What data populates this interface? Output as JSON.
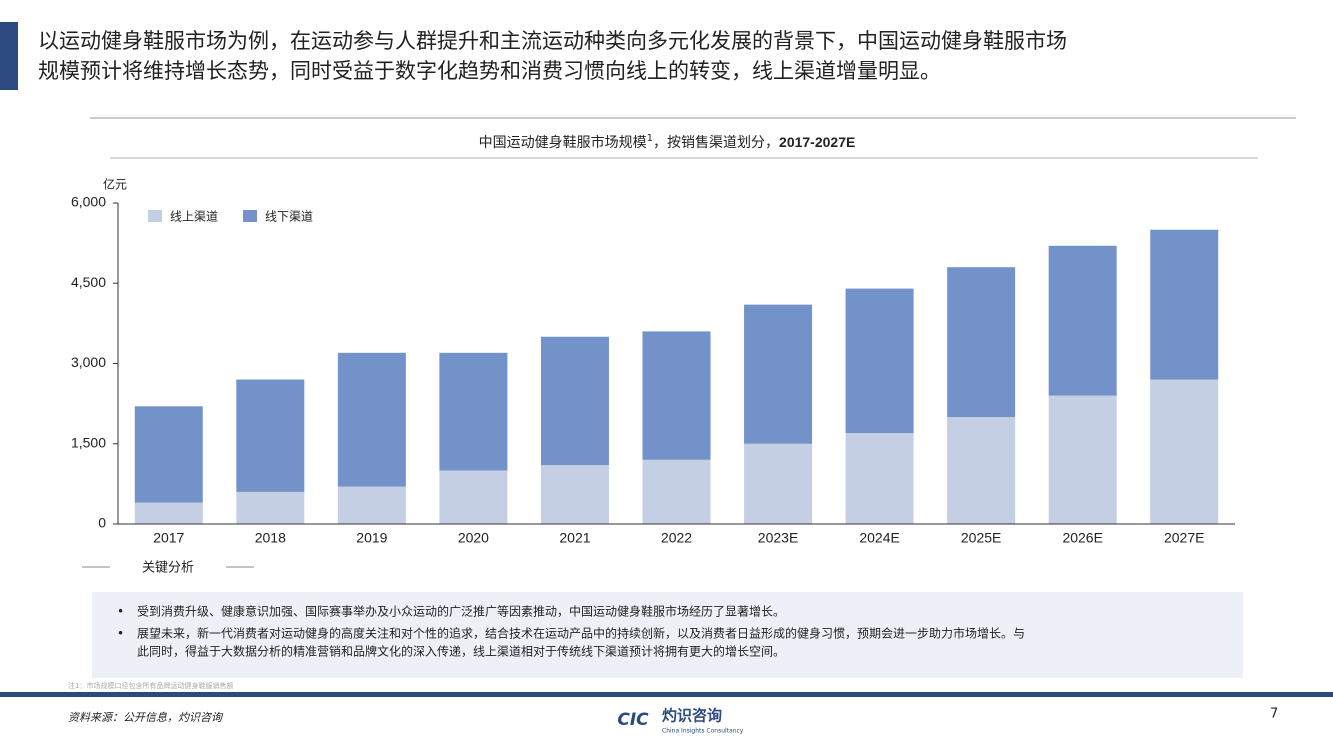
{
  "header": {
    "lines": [
      "以运动健身鞋服市场为例，在运动参与人群提升和主流运动种类向多元化发展的背景下，中国运动健身鞋服市场",
      "规模预计将维持增长态势，同时受益于数字化趋势和消费习惯向线上的转变，线上渠道增量明显。"
    ]
  },
  "chart_data": {
    "type": "stacked_bar",
    "title": "中国运动健身鞋服市场规模",
    "title_note": "1",
    "title_rest": "，按销售渠道划分，",
    "title_years": "2017-2027E",
    "y_unit": "亿元",
    "categories": [
      "2017",
      "2018",
      "2019",
      "2020",
      "2021",
      "2022",
      "2023E",
      "2024E",
      "2025E",
      "2026E",
      "2027E"
    ],
    "series": [
      {
        "name": "线上渠道",
        "color": "#c5cfe3",
        "values": [
          400,
          600,
          700,
          1000,
          1100,
          1200,
          1500,
          1700,
          2000,
          2400,
          2700
        ]
      },
      {
        "name": "线下渠道",
        "color": "#7292c9",
        "values": [
          1800,
          2100,
          2500,
          2200,
          2400,
          2400,
          2600,
          2700,
          2800,
          2800,
          2800
        ]
      }
    ],
    "ylim": [
      0,
      6000
    ],
    "yticks": [
      0,
      {
        "value": 1500,
        "label": "1,500"
      },
      {
        "value": 3000,
        "label": "3,000"
      },
      {
        "value": 4500,
        "label": "4,500"
      },
      {
        "value": 6000,
        "label": "6,000"
      }
    ],
    "legend": "top-left",
    "grid": false
  },
  "analysis": {
    "heading": "关键分析",
    "bullets": [
      "受到消费升级、健康意识加强、国际赛事举办及小众运动的广泛推广等因素推动，中国运动健身鞋服市场经历了显著增长。",
      "展望未来，新一代消费者对运动健身的高度关注和对个性的追求，结合技术在运动产品中的持续创新，以及消费者日益形成的健身习惯，预期会进一步助力市场增长。与",
      "此同时，得益于大数据分析的精准营销和品牌文化的深入传递，线上渠道相对于传统线下渠道预计将拥有更大的增长空间。"
    ]
  },
  "footer": {
    "note": "注1：市场规模口径包含所有品牌运动健身鞋服销售额",
    "source": "资料来源：公开信息，灼识咨询",
    "logo_mark": "CIC",
    "logo_name": "灼识咨询",
    "logo_en": "China Insights Consultancy",
    "page": "7"
  }
}
